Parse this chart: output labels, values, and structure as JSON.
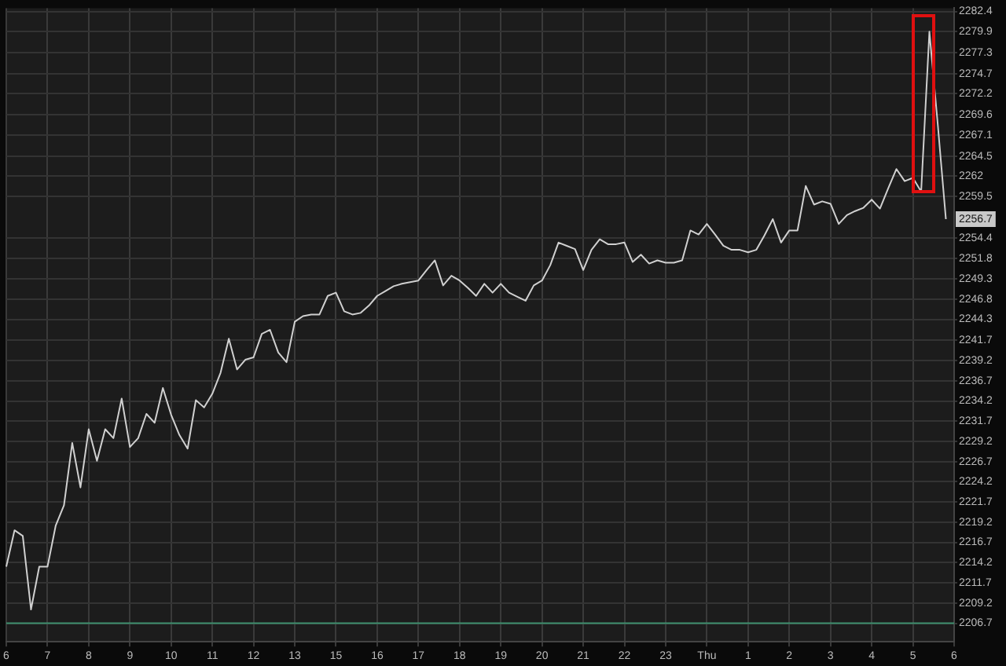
{
  "chart_data": {
    "type": "line",
    "categories": [
      "6",
      null,
      null,
      null,
      null,
      "7",
      null,
      null,
      null,
      null,
      "8",
      null,
      null,
      null,
      null,
      "9",
      null,
      null,
      null,
      null,
      "10",
      null,
      null,
      null,
      null,
      "11",
      null,
      null,
      null,
      null,
      "12",
      null,
      null,
      null,
      null,
      "13",
      null,
      null,
      null,
      null,
      "15",
      null,
      null,
      null,
      null,
      "16",
      null,
      null,
      null,
      null,
      "17",
      null,
      null,
      null,
      null,
      "18",
      null,
      null,
      null,
      null,
      "19",
      null,
      null,
      null,
      null,
      "20",
      null,
      null,
      null,
      null,
      "21",
      null,
      null,
      null,
      null,
      "22",
      null,
      null,
      null,
      null,
      "23",
      null,
      null,
      null,
      null,
      "Thu",
      null,
      null,
      null,
      null,
      "1",
      null,
      null,
      null,
      null,
      "2",
      null,
      null,
      null,
      null,
      "3",
      null,
      null,
      null,
      null,
      "4",
      null,
      null,
      null,
      null,
      "5",
      null,
      null,
      null,
      null,
      "6"
    ],
    "series": [
      {
        "color": "#d0d0d0",
        "values": [
          2213.7,
          2218.2,
          2217.5,
          2208.4,
          2213.7,
          2213.7,
          2218.8,
          2221.3,
          2229.0,
          2223.5,
          2230.7,
          2226.8,
          2230.7,
          2229.6,
          2234.5,
          2228.5,
          2229.6,
          2232.6,
          2231.5,
          2235.8,
          2232.5,
          2230.0,
          2228.3,
          2234.3,
          2233.4,
          2235.1,
          2237.7,
          2241.9,
          2238.1,
          2239.3,
          2239.6,
          2242.5,
          2243.0,
          2240.2,
          2239.0,
          2244.0,
          2244.7,
          2244.9,
          2244.9,
          2247.2,
          2247.6,
          2245.3,
          2244.9,
          2245.1,
          2246.0,
          2247.2,
          2247.8,
          2248.4,
          2248.7,
          2248.9,
          2249.1,
          2250.4,
          2251.6,
          2248.5,
          2249.7,
          2249.1,
          2248.2,
          2247.2,
          2248.7,
          2247.6,
          2248.7,
          2247.6,
          2247.1,
          2246.6,
          2248.5,
          2249.1,
          2251.0,
          2253.8,
          2253.4,
          2253.0,
          2250.4,
          2252.9,
          2254.2,
          2253.6,
          2253.6,
          2253.8,
          2251.4,
          2252.3,
          2251.2,
          2251.6,
          2251.3,
          2251.3,
          2251.6,
          2255.3,
          2254.8,
          2256.1,
          2254.8,
          2253.4,
          2252.9,
          2252.9,
          2252.6,
          2252.9,
          2254.7,
          2256.7,
          2253.8,
          2255.3,
          2255.3,
          2260.8,
          2258.5,
          2258.9,
          2258.6,
          2256.1,
          2257.2,
          2257.7,
          2258.1,
          2259.1,
          2258.0,
          2260.5,
          2262.9,
          2261.4,
          2261.8,
          2260.1,
          2279.9,
          2268.6,
          2256.7,
          null
        ]
      }
    ],
    "ylim": [
      2204.4,
      2282.8
    ],
    "yticks": [
      2206.7,
      2209.2,
      2211.7,
      2214.2,
      2216.7,
      2219.2,
      2221.7,
      2224.2,
      2226.7,
      2229.2,
      2231.7,
      2234.2,
      2236.7,
      2239.2,
      2241.7,
      2244.3,
      2246.8,
      2249.3,
      2251.8,
      2254.4,
      2259.5,
      2262,
      2264.5,
      2267.1,
      2269.6,
      2272.2,
      2274.7,
      2277.3,
      2279.9,
      2282.4
    ],
    "grid": true,
    "marker": "none",
    "ref_lines": [
      {
        "axis": "y",
        "value": 2206.7,
        "color": "#3f8f6f"
      }
    ],
    "annotations": [
      {
        "text": "2256.7",
        "y": 2256.7
      }
    ]
  }
}
